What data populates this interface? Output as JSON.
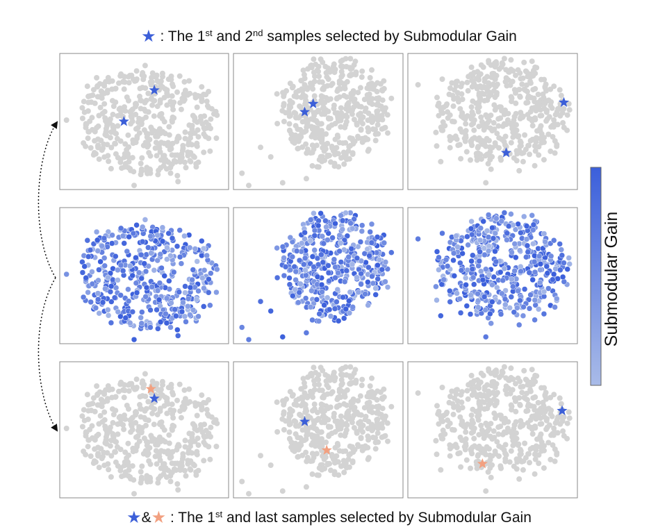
{
  "captions": {
    "top": {
      "prefix": ": The 1",
      "sup1": "st",
      "mid": " and 2",
      "sup2": "nd",
      "suffix": " samples selected by Submodular Gain"
    },
    "bottom": {
      "amp": "&",
      "prefix": ": The 1",
      "sup1": "st",
      "suffix": " and last samples selected by Submodular Gain"
    }
  },
  "colors": {
    "point_gray": "#d3d3d3",
    "star_blue": "#3c5fd8",
    "star_orange": "#f2a080",
    "gain_high": "#3b5fdb",
    "gain_low": "#a9bbe8",
    "frame": "#8a8a8a"
  },
  "icons": {
    "first_sample": "star-icon-blue",
    "last_sample": "star-icon-orange",
    "row_links": "dotted-curved-arrow-icon"
  },
  "chart_data": {
    "type": "scatter",
    "layout": "grid 3 rows x 3 columns",
    "row_descriptions": [
      "gray embedding with the 1st and 2nd selected samples (blue stars)",
      "embedding colored by submodular gain",
      "gray embedding with the 1st (blue star) and last (orange star) selected samples"
    ],
    "colorbar": {
      "label": "Submodular Gain",
      "orientation": "vertical",
      "position": "right",
      "high_color": "#3b5fdb",
      "low_color": "#a9bbe8"
    },
    "clusters": [
      {
        "column": 1,
        "shape": "round cloud",
        "core": [
          0.53,
          0.51,
          0.42,
          0.4
        ],
        "outliers": [
          [
            0.04,
            0.49
          ]
        ],
        "stars": {
          "selection_1": [
            [
              0.56,
              0.27
            ],
            [
              0.38,
              0.5
            ]
          ],
          "selection_2": [
            {
              "kind": "first",
              "pos": [
                0.56,
                0.27
              ]
            },
            {
              "kind": "last",
              "pos": [
                0.54,
                0.2
              ]
            }
          ]
        }
      },
      {
        "column": 2,
        "shape": "cloud offset to upper right with scattered points at lower left",
        "core": [
          0.6,
          0.42,
          0.32,
          0.4
        ],
        "outliers": [
          [
            0.05,
            0.88
          ],
          [
            0.09,
            0.97
          ],
          [
            0.16,
            0.69
          ],
          [
            0.22,
            0.76
          ],
          [
            0.29,
            0.95
          ],
          [
            0.43,
            0.92
          ]
        ],
        "stars": {
          "selection_1": [
            [
              0.47,
              0.37
            ],
            [
              0.42,
              0.43
            ]
          ],
          "selection_2": [
            {
              "kind": "first",
              "pos": [
                0.42,
                0.44
              ]
            },
            {
              "kind": "last",
              "pos": [
                0.55,
                0.65
              ]
            }
          ]
        }
      },
      {
        "column": 3,
        "shape": "wide cloud with streaks",
        "core": [
          0.56,
          0.45,
          0.38,
          0.4
        ],
        "outliers": [
          [
            0.06,
            0.23
          ],
          [
            0.17,
            0.68
          ],
          [
            0.46,
            0.95
          ]
        ],
        "stars": {
          "selection_1": [
            [
              0.92,
              0.36
            ],
            [
              0.58,
              0.73
            ]
          ],
          "selection_2": [
            {
              "kind": "first",
              "pos": [
                0.91,
                0.36
              ]
            },
            {
              "kind": "last",
              "pos": [
                0.44,
                0.75
              ]
            }
          ]
        }
      }
    ]
  }
}
